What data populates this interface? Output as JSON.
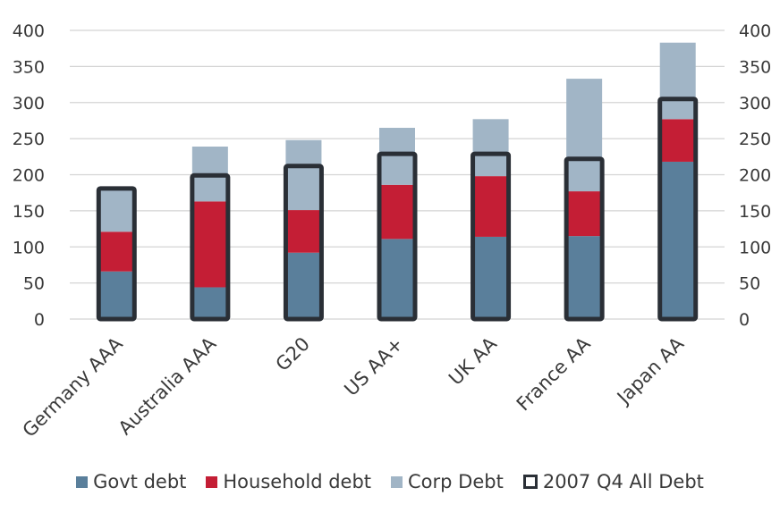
{
  "chart_data": {
    "type": "bar",
    "stacked": true,
    "categories": [
      "Germany AAA",
      "Australia AAA",
      "G20",
      "US AA+",
      "UK AA",
      "France AA",
      "Japan AA"
    ],
    "series": [
      {
        "name": "Govt debt",
        "color": "#5a7f9b",
        "values": [
          66,
          44,
          92,
          111,
          114,
          115,
          218
        ]
      },
      {
        "name": "Household debt",
        "color": "#c41e35",
        "values": [
          55,
          119,
          59,
          75,
          84,
          62,
          59
        ]
      },
      {
        "name": "Corp Debt",
        "color": "#a1b5c6",
        "values": [
          62,
          76,
          97,
          79,
          79,
          156,
          106
        ]
      }
    ],
    "overlay": {
      "name": "2007 Q4 All Debt",
      "color": "#2a2f36",
      "values": [
        181,
        199,
        212,
        229,
        229,
        222,
        305
      ]
    },
    "ylim": [
      0,
      400
    ],
    "yticks": [
      0,
      50,
      100,
      150,
      200,
      250,
      300,
      350,
      400
    ],
    "ytick_labels": [
      "0",
      "50",
      "100",
      "150",
      "200",
      "250",
      "300",
      "350",
      "400"
    ],
    "title": "",
    "xlabel": "",
    "ylabel": "",
    "grid": true,
    "secondary_axis": true,
    "legend_position": "bottom"
  }
}
